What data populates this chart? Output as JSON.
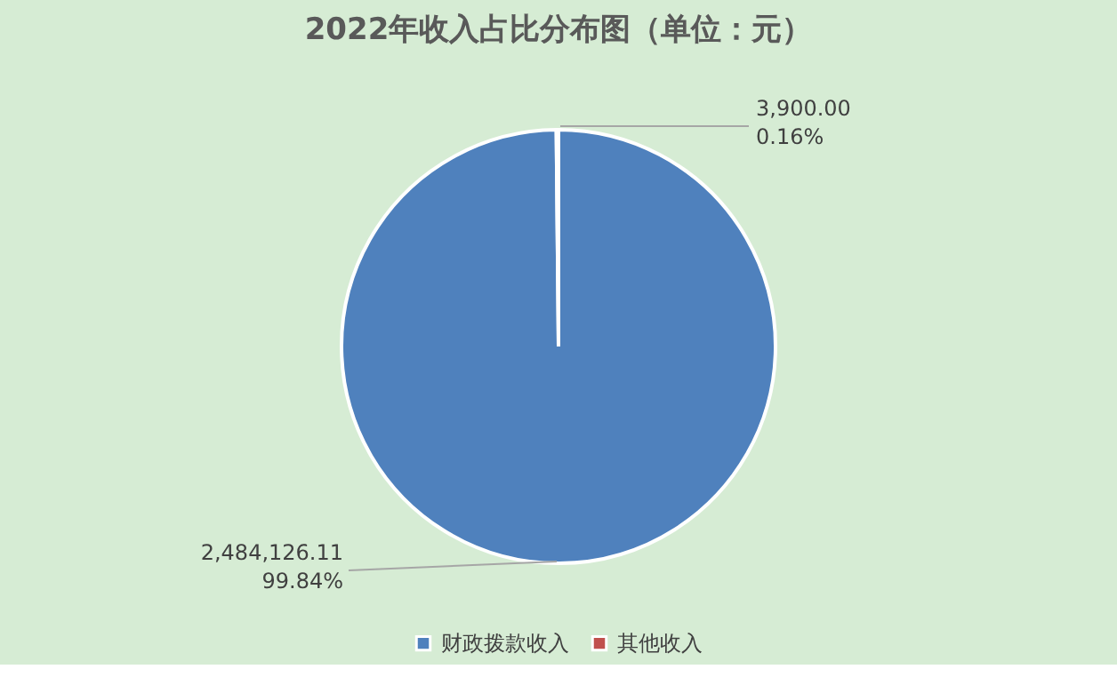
{
  "chart_data": {
    "type": "pie",
    "title": "2022年收入占比分布图（单位：元）",
    "categories": [
      "财政拨款收入",
      "其他收入"
    ],
    "values": [
      2484126.11,
      3900.0
    ],
    "colors": [
      "#4f81bd",
      "#c0504d"
    ],
    "value_labels": [
      "2,484,126.11\n99.84%",
      "3,900.00\n0.16%"
    ],
    "legend": "bottom"
  }
}
